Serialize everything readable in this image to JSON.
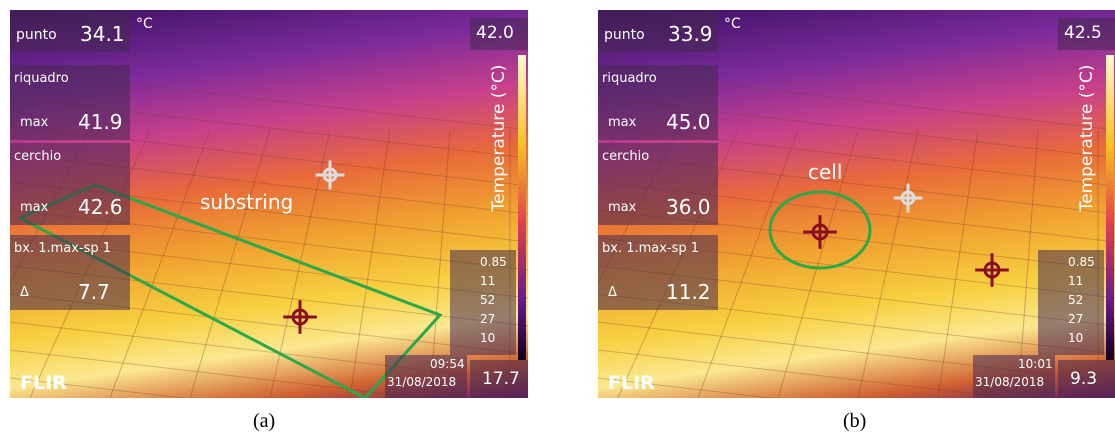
{
  "panels": [
    {
      "caption": "(a)",
      "annotation": "substring",
      "spot": {
        "label": "punto",
        "value": "34.1",
        "unit": "°C"
      },
      "scale_max": "42.0",
      "scale_min": "17.7",
      "scale_title": "Temperature (°C)",
      "boxes": [
        {
          "label": "riquadro",
          "sub": "max",
          "value": "41.9"
        },
        {
          "label": "cerchio",
          "sub": "max",
          "value": "42.6"
        },
        {
          "label": "bx. 1.max-sp 1",
          "sub": "Δ",
          "value": "7.7"
        }
      ],
      "params": [
        "0.85",
        "11",
        "52",
        "27",
        "10"
      ],
      "time": "09:54",
      "date": "31/08/2018",
      "brand": "FLIR"
    },
    {
      "caption": "(b)",
      "annotation": "cell",
      "spot": {
        "label": "punto",
        "value": "33.9",
        "unit": "°C"
      },
      "scale_max": "42.5",
      "scale_min": "9.3",
      "scale_title": "Temperature (°C)",
      "boxes": [
        {
          "label": "riquadro",
          "sub": "max",
          "value": "45.0"
        },
        {
          "label": "cerchio",
          "sub": "max",
          "value": "36.0"
        },
        {
          "label": "bx. 1.max-sp 1",
          "sub": "Δ",
          "value": "11.2"
        }
      ],
      "params": [
        "0.85",
        "11",
        "52",
        "27",
        "10"
      ],
      "time": "10:01",
      "date": "31/08/2018",
      "brand": "FLIR"
    }
  ]
}
